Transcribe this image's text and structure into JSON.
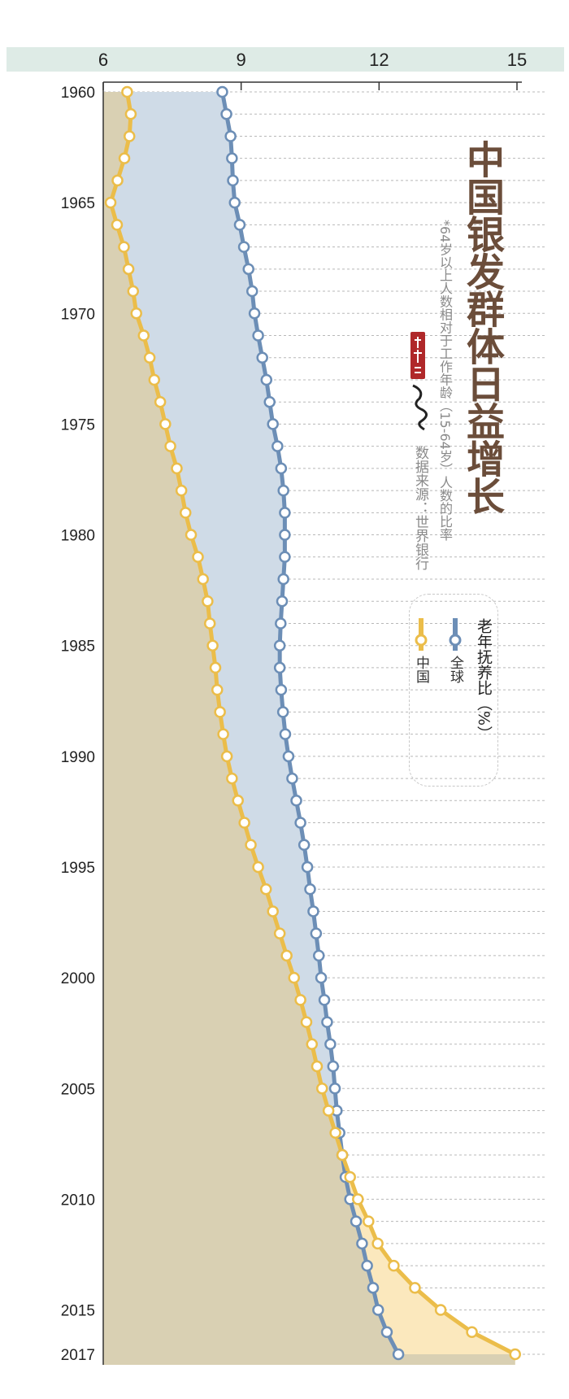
{
  "colors": {
    "china": "#ebbd4a",
    "world": "#6c8eb6",
    "china_fill": "#d9d0b3",
    "gap_fill": "#cfdbe7",
    "china_over_fill": "#fbe8bd",
    "header_band": "#deebe6",
    "title": "#6b4d3a",
    "brand_red": "#b0282a"
  },
  "chart_data": {
    "type": "line",
    "title": "中国银发群体日益增长",
    "subtitle": "*64岁以上人数相对于工作年龄（15-64岁）人数的比率",
    "source": "数据来源：世界银行",
    "legend_title": "老年抚养比（%）",
    "xlim": [
      6,
      15
    ],
    "x_ticks": [
      6,
      9,
      12,
      15
    ],
    "y_ticks": [
      1960,
      1965,
      1970,
      1975,
      1980,
      1985,
      1990,
      1995,
      2000,
      2005,
      2010,
      2015,
      2017
    ],
    "years": [
      1960,
      1961,
      1962,
      1963,
      1964,
      1965,
      1966,
      1967,
      1968,
      1969,
      1970,
      1971,
      1972,
      1973,
      1974,
      1975,
      1976,
      1977,
      1978,
      1979,
      1980,
      1981,
      1982,
      1983,
      1984,
      1985,
      1986,
      1987,
      1988,
      1989,
      1990,
      1991,
      1992,
      1993,
      1994,
      1995,
      1996,
      1997,
      1998,
      1999,
      2000,
      2001,
      2002,
      2003,
      2004,
      2005,
      2006,
      2007,
      2008,
      2009,
      2010,
      2011,
      2012,
      2013,
      2014,
      2015,
      2016,
      2017
    ],
    "series": [
      {
        "name": "全球",
        "key": "world",
        "values": [
          8.59,
          8.68,
          8.77,
          8.8,
          8.82,
          8.86,
          8.97,
          9.06,
          9.16,
          9.24,
          9.29,
          9.37,
          9.46,
          9.55,
          9.62,
          9.69,
          9.79,
          9.87,
          9.92,
          9.95,
          9.95,
          9.95,
          9.92,
          9.89,
          9.86,
          9.84,
          9.84,
          9.87,
          9.91,
          9.96,
          10.03,
          10.11,
          10.2,
          10.29,
          10.37,
          10.44,
          10.5,
          10.57,
          10.63,
          10.69,
          10.74,
          10.81,
          10.87,
          10.94,
          11.0,
          11.04,
          11.08,
          11.14,
          11.2,
          11.27,
          11.37,
          11.5,
          11.63,
          11.74,
          11.87,
          11.98,
          12.17,
          12.42
        ]
      },
      {
        "name": "中国",
        "key": "china",
        "values": [
          6.52,
          6.6,
          6.57,
          6.46,
          6.31,
          6.16,
          6.3,
          6.45,
          6.55,
          6.65,
          6.72,
          6.88,
          7.01,
          7.11,
          7.24,
          7.35,
          7.46,
          7.6,
          7.7,
          7.79,
          7.91,
          8.06,
          8.17,
          8.27,
          8.32,
          8.38,
          8.44,
          8.48,
          8.54,
          8.61,
          8.69,
          8.8,
          8.93,
          9.07,
          9.21,
          9.37,
          9.54,
          9.69,
          9.84,
          9.99,
          10.15,
          10.29,
          10.42,
          10.54,
          10.65,
          10.76,
          10.9,
          11.05,
          11.2,
          11.37,
          11.54,
          11.77,
          11.97,
          12.32,
          12.78,
          13.34,
          14.02,
          14.96
        ]
      }
    ]
  }
}
